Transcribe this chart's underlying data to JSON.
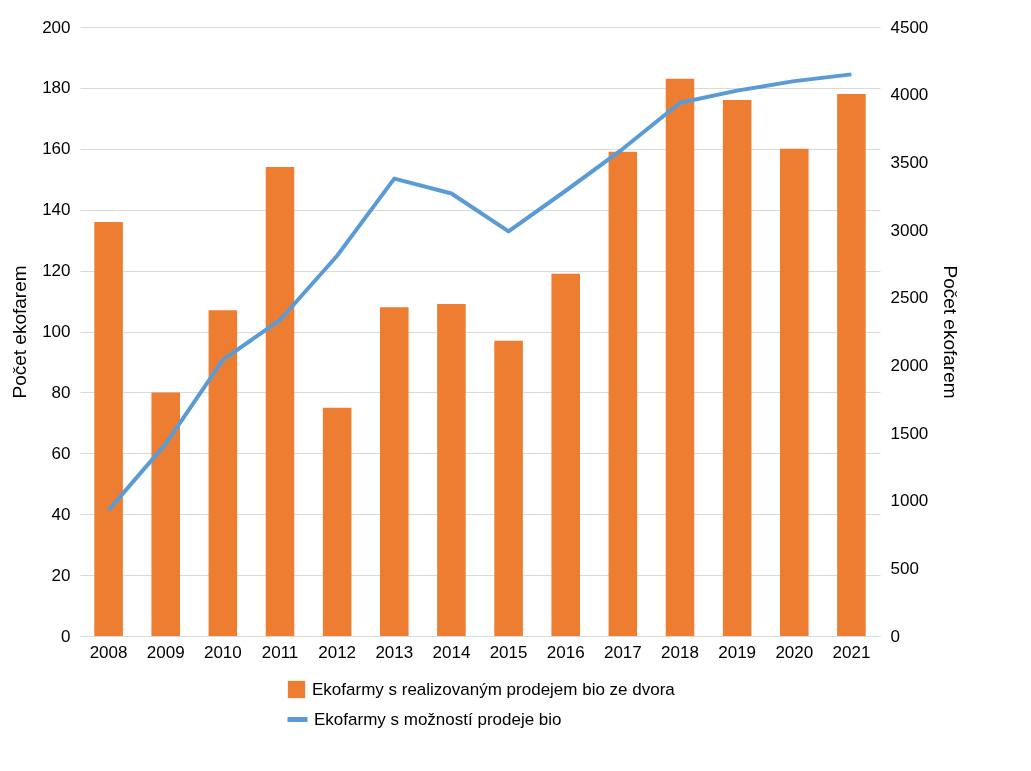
{
  "chart_data": {
    "type": "bar",
    "categories": [
      "2008",
      "2009",
      "2010",
      "2011",
      "2012",
      "2013",
      "2014",
      "2015",
      "2016",
      "2017",
      "2018",
      "2019",
      "2020",
      "2021"
    ],
    "series": [
      {
        "name": "Ekofarmy s realizovaným prodejem bio ze dvora",
        "color": "#ed7d31",
        "values": [
          136,
          80,
          107,
          154,
          75,
          108,
          109,
          97,
          119,
          159,
          183,
          176,
          160,
          178
        ]
      },
      {
        "name": "Ekofarmy s možností prodeje bio",
        "type": "line",
        "axis": "y2",
        "color": "#5b9bd5",
        "values": [
          930,
          1420,
          2040,
          2335,
          2810,
          3380,
          3270,
          2990,
          3290,
          3600,
          3940,
          4030,
          4100,
          4150
        ]
      }
    ],
    "ylabel": "Počet ekofarem",
    "y2label": "Počet ekofarem",
    "ylim": [
      0,
      200
    ],
    "yticks": [
      0,
      20,
      40,
      60,
      80,
      100,
      120,
      140,
      160,
      180,
      200
    ],
    "y2lim": [
      0,
      4500
    ],
    "y2ticks": [
      0,
      500,
      1000,
      1500,
      2000,
      2500,
      3000,
      3500,
      4000,
      4500
    ],
    "grid": "y",
    "legend": "bottom",
    "marker": "none",
    "line_style": "solid"
  }
}
